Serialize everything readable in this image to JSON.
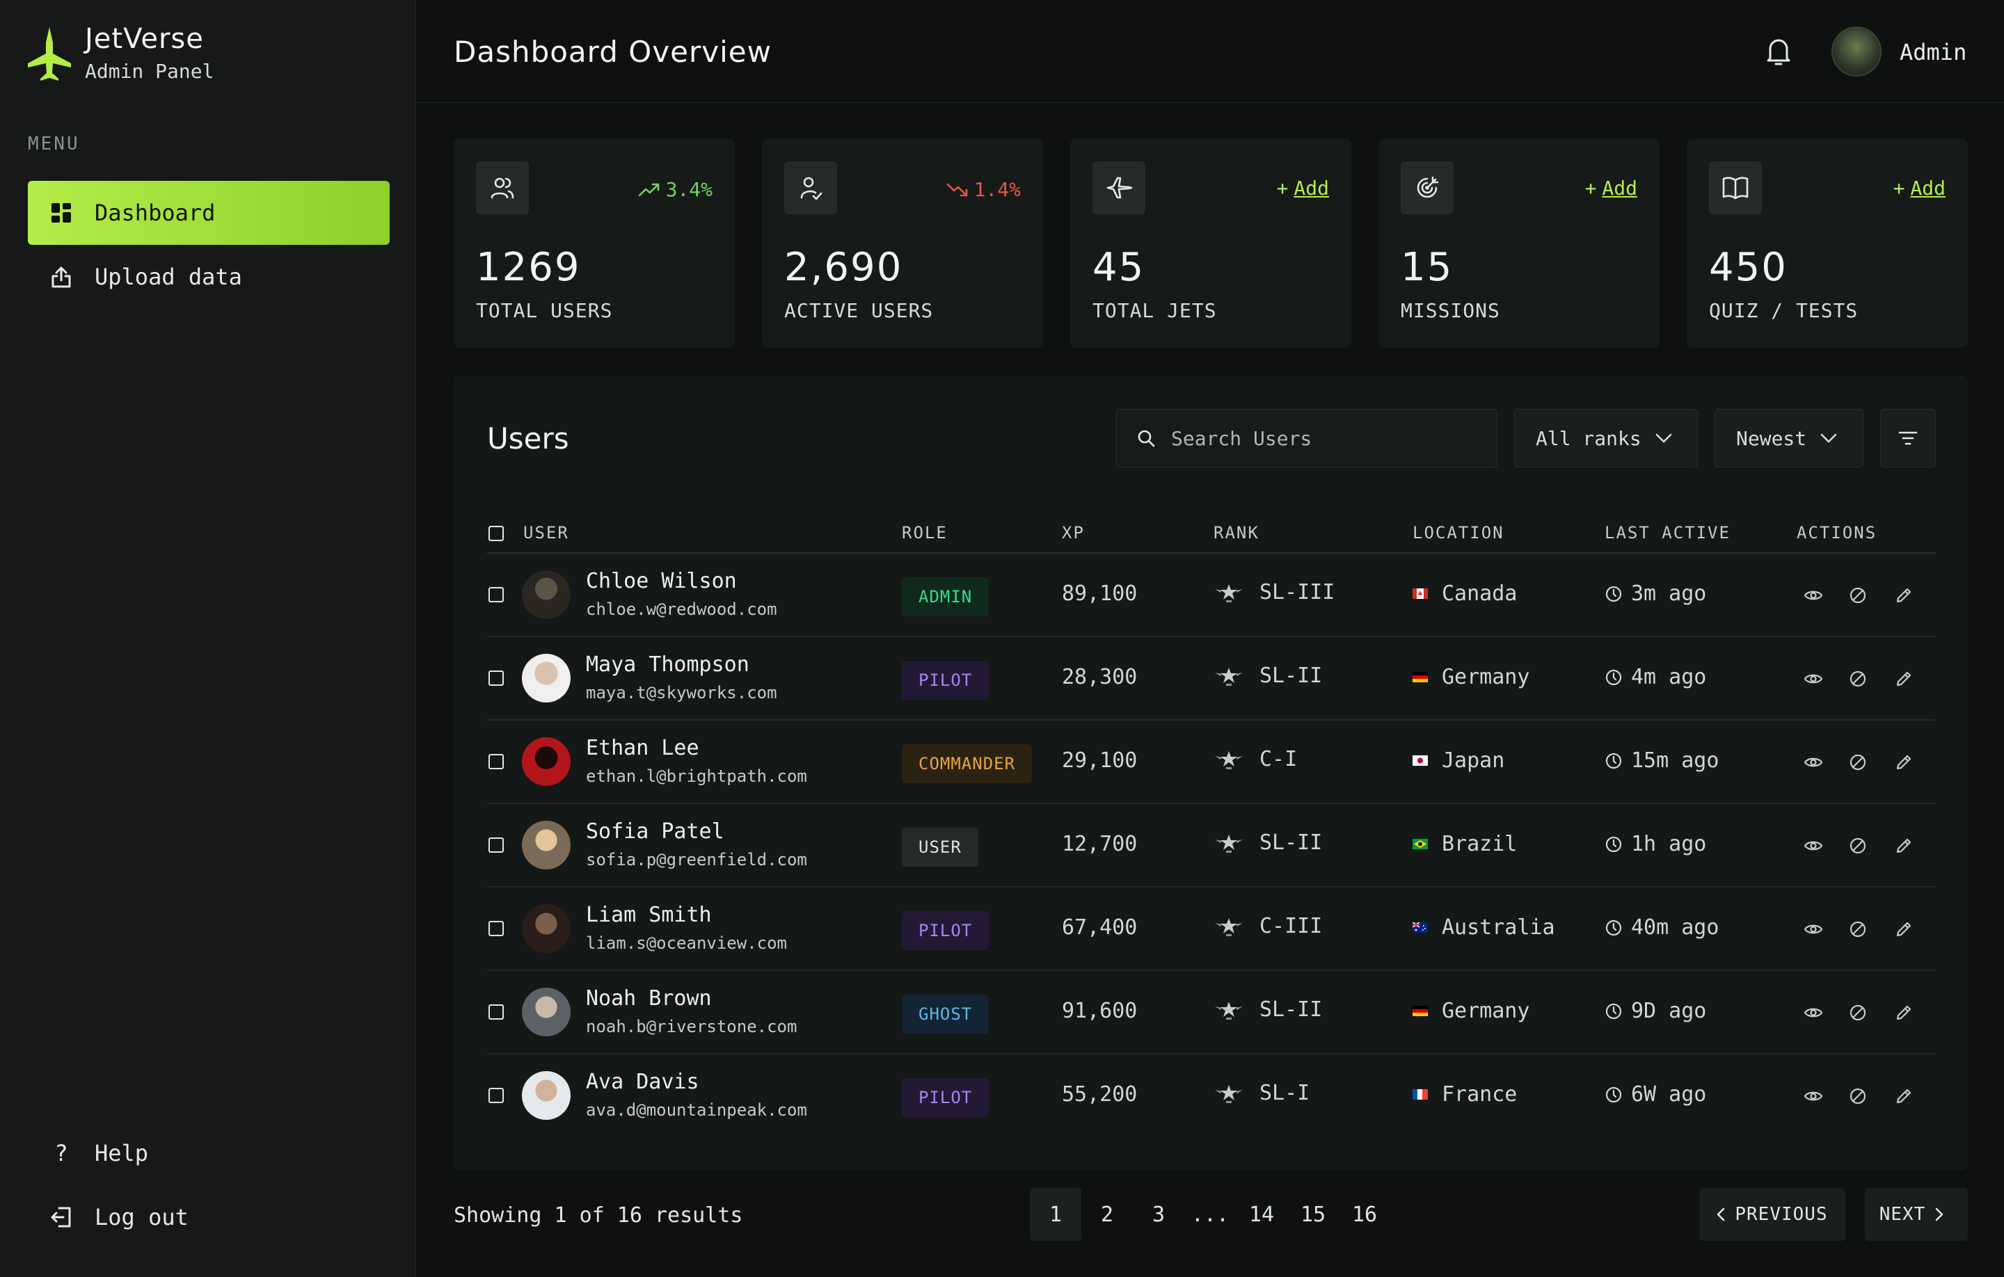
{
  "brand": {
    "title": "JetVerse",
    "subtitle": "Admin Panel"
  },
  "sidebar": {
    "menu_label": "MENU",
    "items": [
      {
        "label": "Dashboard",
        "icon": "grid-icon",
        "active": true
      },
      {
        "label": "Upload data",
        "icon": "upload-icon",
        "active": false
      }
    ],
    "bottom": [
      {
        "label": "Help",
        "icon": "question-icon"
      },
      {
        "label": "Log out",
        "icon": "logout-icon"
      }
    ]
  },
  "header": {
    "title": "Dashboard Overview",
    "user": "Admin"
  },
  "stats": [
    {
      "value": "1269",
      "label": "TOTAL USERS",
      "trend": "3.4%",
      "trend_dir": "up",
      "icon": "users-icon"
    },
    {
      "value": "2,690",
      "label": "ACTIVE USERS",
      "trend": "1.4%",
      "trend_dir": "down",
      "icon": "active-user-icon"
    },
    {
      "value": "45",
      "label": "TOTAL JETS",
      "add": "Add",
      "icon": "jet-icon"
    },
    {
      "value": "15",
      "label": "MISSIONS",
      "add": "Add",
      "icon": "target-icon"
    },
    {
      "value": "450",
      "label": "QUIZ / TESTS",
      "add": "Add",
      "icon": "book-icon"
    }
  ],
  "users_panel": {
    "title": "Users",
    "search_placeholder": "Search Users",
    "rank_filter": "All ranks",
    "sort": "Newest",
    "columns": [
      "USER",
      "ROLE",
      "XP",
      "RANK",
      "LOCATION",
      "LAST ACTIVE",
      "ACTIONS"
    ],
    "rows": [
      {
        "name": "Chloe Wilson",
        "email": "chloe.w@redwood.com",
        "role": "ADMIN",
        "xp": "89,100",
        "rank": "SL-III",
        "location": "Canada",
        "last_active": "3m ago"
      },
      {
        "name": "Maya Thompson",
        "email": "maya.t@skyworks.com",
        "role": "PILOT",
        "xp": "28,300",
        "rank": "SL-II",
        "location": "Germany",
        "last_active": "4m ago"
      },
      {
        "name": "Ethan Lee",
        "email": "ethan.l@brightpath.com",
        "role": "COMMANDER",
        "xp": "29,100",
        "rank": "C-I",
        "location": "Japan",
        "last_active": "15m ago"
      },
      {
        "name": "Sofia Patel",
        "email": "sofia.p@greenfield.com",
        "role": "USER",
        "xp": "12,700",
        "rank": "SL-II",
        "location": "Brazil",
        "last_active": "1h ago"
      },
      {
        "name": "Liam Smith",
        "email": "liam.s@oceanview.com",
        "role": "PILOT",
        "xp": "67,400",
        "rank": "C-III",
        "location": "Australia",
        "last_active": "40m ago"
      },
      {
        "name": "Noah Brown",
        "email": "noah.b@riverstone.com",
        "role": "GHOST",
        "xp": "91,600",
        "rank": "SL-II",
        "location": "Germany",
        "last_active": "9D ago"
      },
      {
        "name": "Ava Davis",
        "email": "ava.d@mountainpeak.com",
        "role": "PILOT",
        "xp": "55,200",
        "rank": "SL-I",
        "location": "France",
        "last_active": "6W ago"
      }
    ]
  },
  "pagination": {
    "showing": "Showing 1 of 16 results",
    "pages": [
      "1",
      "2",
      "3",
      "...",
      "14",
      "15",
      "16"
    ],
    "current": "1",
    "prev": "PREVIOUS",
    "next": "NEXT"
  },
  "colors": {
    "accent": "#b4ec49",
    "up": "#71d35b",
    "down": "#e5554f",
    "background": "#0e1110"
  }
}
